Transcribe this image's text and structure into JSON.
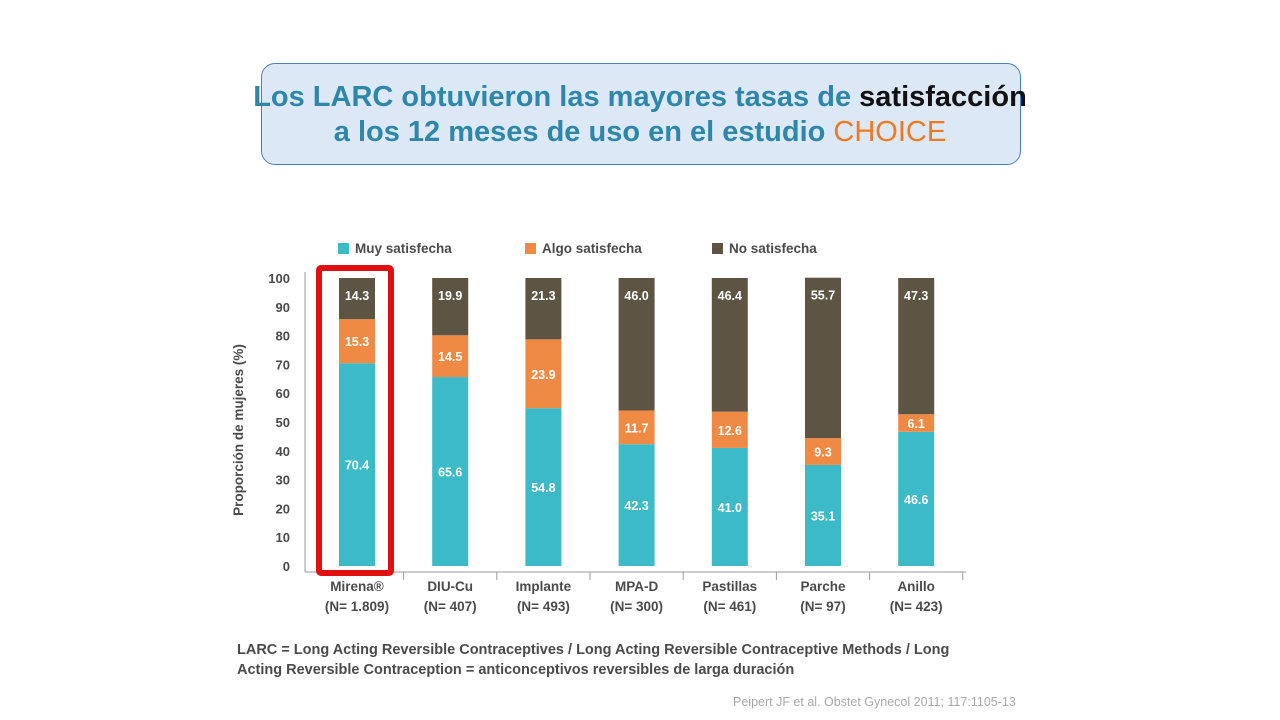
{
  "slide": {
    "title_part1": "Los LARC obtuvieron las mayores tasas de ",
    "title_highlight": "satisfacción",
    "title_part2": "a los 12 meses de uso en el estudio ",
    "title_brand": "CHOICE",
    "footnote_line1": "LARC = Long Acting Reversible Contraceptives /  Long Acting Reversible Contraceptive Methods / Long",
    "footnote_line2": "Acting Reversible Contraception = anticonceptivos reversibles de larga duración",
    "citation": "Peipert JF et al. Obstet Gynecol 2011; 117:1105-13",
    "colors": {
      "title": "#2e86a8",
      "highlight": "#111111",
      "brand": "#f07820",
      "box": "#dce8f5",
      "box_border": "#4a7fbf"
    }
  },
  "chart_data": {
    "type": "bar",
    "stacked": true,
    "categories": [
      "Mirena®",
      "DIU-Cu",
      "Implante",
      "MPA-D",
      "Pastillas",
      "Parche",
      "Anillo"
    ],
    "category_sublabels": [
      "(N= 1.809)",
      "(N= 407)",
      "(N= 493)",
      "(N= 300)",
      "(N= 461)",
      "(N= 97)",
      "(N= 423)"
    ],
    "series": [
      {
        "name": "Muy satisfecha",
        "color": "#3cbac8",
        "values": [
          70.4,
          65.6,
          54.8,
          42.3,
          41.0,
          35.1,
          46.6
        ],
        "labels": [
          "70.4",
          "65.6",
          "54.8",
          "42.3",
          "41.0",
          "35.1",
          "46.6"
        ]
      },
      {
        "name": "Algo satisfecha",
        "color": "#ef8a45",
        "values": [
          15.3,
          14.5,
          23.9,
          11.7,
          12.6,
          9.3,
          6.1
        ],
        "labels": [
          "15.3",
          "14.5",
          "23.9",
          "11.7",
          "12.6",
          "9.3",
          "6.1"
        ]
      },
      {
        "name": "No satisfecha",
        "color": "#5e5443",
        "values": [
          14.3,
          19.9,
          21.3,
          46.0,
          46.4,
          55.7,
          47.3
        ],
        "labels": [
          "14.3",
          "19.9",
          "21.3",
          "46.0",
          "46.4",
          "55.7",
          "47.3"
        ]
      }
    ],
    "ylabel": "Proporción de mujeres (%)",
    "xlabel": "",
    "ylim": [
      0,
      100
    ],
    "yticks": [
      "0",
      "10",
      "20",
      "30",
      "40",
      "50",
      "60",
      "70",
      "80",
      "90",
      "100"
    ],
    "legend_position": "top",
    "highlighted_category": "Mirena®",
    "highlight_color": "#e01010",
    "grid": false
  }
}
